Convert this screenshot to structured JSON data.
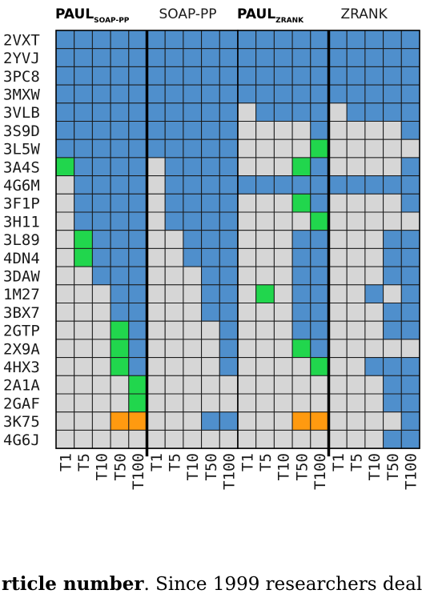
{
  "chart_data": {
    "type": "heatmap",
    "colors": {
      "blue": "#4F8FCC",
      "gray": "#D6D6D6",
      "green": "#21D64D",
      "orange": "#FF9A10",
      "grid": "#1a1a1a",
      "divider": "#000000"
    },
    "legend_codes": {
      "B": "blue",
      "g": "gray",
      "G": "green",
      "O": "orange"
    },
    "rows": [
      "2VXT",
      "2YVJ",
      "3PC8",
      "3MXW",
      "3VLB",
      "3S9D",
      "3L5W",
      "3A4S",
      "4G6M",
      "3F1P",
      "3H11",
      "3L89",
      "4DN4",
      "3DAW",
      "1M27",
      "3BX7",
      "2GTP",
      "2X9A",
      "4HX3",
      "2A1A",
      "2GAF",
      "3K75",
      "4G6J"
    ],
    "columns": [
      "T1",
      "T5",
      "T10",
      "T50",
      "T100",
      "T1",
      "T5",
      "T10",
      "T50",
      "T100"
    ],
    "panels": [
      {
        "left_title_main": "PAUL",
        "left_title_sub": "SOAP-PP",
        "right_title": "SOAP-PP",
        "grid": [
          "BBBBBBBBBB",
          "BBBBBBBBBB",
          "BBBBBBBBBB",
          "BBBBBBBBBB",
          "BBBBBBBBBB",
          "BBBBBBBBBB",
          "BBBBBBBBBB",
          "GBBBBgBBBB",
          "gBBBBgBBBB",
          "gBBBBgBBBB",
          "gBBBBgBBBB",
          "gGBBBggBBB",
          "gGBBBggBBB",
          "ggBBBgggBB",
          "gggBBgggBB",
          "gggBBgggBB",
          "gggGBggggB",
          "gggGBggggB",
          "gggGBggggB",
          "ggggGggggg",
          "ggggGggggg",
          "gggOOgggBB",
          "gggggggggg"
        ]
      },
      {
        "left_title_main": "PAUL",
        "left_title_sub": "ZRANK",
        "right_title": "ZRANK",
        "grid": [
          "BBBBBBBBBB",
          "BBBBBBBBBB",
          "BBBBBBBBBB",
          "BBBBBBBBBB",
          "gBBBBgBBBB",
          "ggggBggggB",
          "ggggGggggg",
          "gggGBggggB",
          "BBBBBBBBBB",
          "gggGBggggB",
          "ggggGggggg",
          "gggBBgggBB",
          "gggBBgggBB",
          "gggBBgggBB",
          "gGgBBggBgB",
          "gggBBgggBB",
          "gggBBgggBB",
          "gggGBggggg",
          "ggggGggBBB",
          "ggggggggBB",
          "ggggggggBB",
          "gggOOggggB",
          "ggggggggBB"
        ]
      }
    ]
  },
  "caption": {
    "bold": "rticle number",
    "rest": "Since 1999 researchers deal"
  }
}
